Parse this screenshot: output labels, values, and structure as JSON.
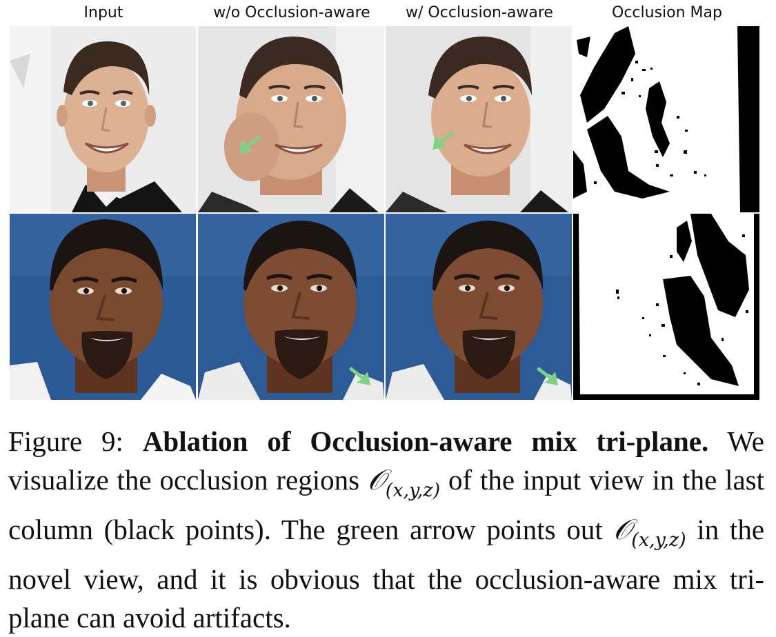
{
  "columns": [
    {
      "label": "Input"
    },
    {
      "label": "w/o Occlusion-aware"
    },
    {
      "label": "w/ Occlusion-aware"
    },
    {
      "label": "Occlusion Map"
    }
  ],
  "colors": {
    "arrow": "#7ed283",
    "row1_bg": "#e9e9e9",
    "row2_bg": "#2c5a96",
    "skin_light": "#dcb093",
    "skin_dark": "#7a4a30",
    "hair_light": "#3a2a22",
    "hair_dark": "#1c1410"
  },
  "caption": {
    "label": "Figure 9:",
    "title": "Ablation of Occlusion-aware mix tri-plane.",
    "text_1": "We visualize the occlusion regions",
    "math_symbol": "𝒪",
    "math_sub": "(x,y,z)",
    "text_2": "of the input view in the last column (black points). The green arrow points out",
    "text_3": "in the novel view, and it is obvious that the occlusion-aware mix tri-plane can avoid artifacts."
  }
}
